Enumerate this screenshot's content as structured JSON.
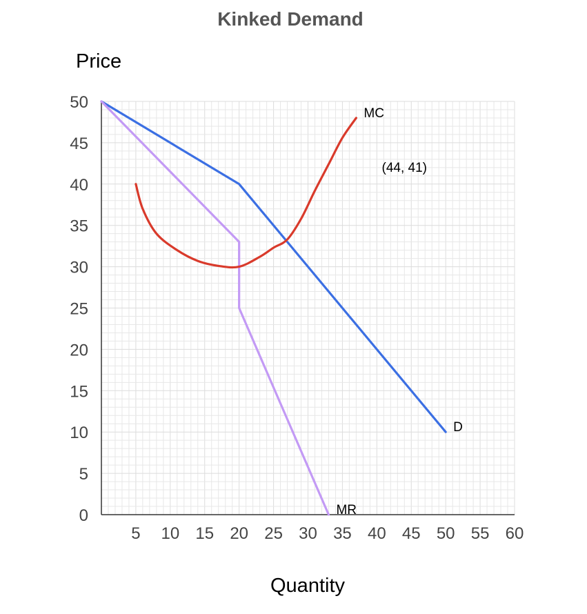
{
  "chart_data": {
    "type": "line",
    "title": "Kinked Demand",
    "xlabel": "Quantity",
    "ylabel": "Price",
    "xlim": [
      0,
      60
    ],
    "ylim": [
      0,
      50
    ],
    "x_ticks": [
      "5",
      "10",
      "15",
      "20",
      "25",
      "30",
      "35",
      "40",
      "45",
      "50",
      "55",
      "60"
    ],
    "y_ticks": [
      "0",
      "5",
      "10",
      "15",
      "20",
      "25",
      "30",
      "35",
      "40",
      "45",
      "50"
    ],
    "grid": true,
    "series": [
      {
        "name": "D",
        "color": "#3b6fe3",
        "points": [
          [
            0,
            50
          ],
          [
            20,
            40
          ],
          [
            50,
            10
          ]
        ]
      },
      {
        "name": "MR",
        "color": "#c39af5",
        "points": [
          [
            0,
            50
          ],
          [
            20,
            33
          ],
          [
            20,
            25
          ],
          [
            33,
            0
          ]
        ]
      },
      {
        "name": "MC",
        "color": "#d93a2b",
        "smooth": true,
        "points": [
          [
            5,
            40
          ],
          [
            6,
            37
          ],
          [
            8,
            34
          ],
          [
            11,
            32
          ],
          [
            14,
            30.7
          ],
          [
            17,
            30.1
          ],
          [
            20,
            30
          ],
          [
            23,
            31.2
          ],
          [
            25,
            32.3
          ],
          [
            27,
            33.3
          ],
          [
            29,
            35.8
          ],
          [
            31,
            39.2
          ],
          [
            33,
            42.4
          ],
          [
            35,
            45.6
          ],
          [
            37,
            48
          ]
        ]
      }
    ],
    "annotations": [
      {
        "text": "(44, 41)",
        "x": 44,
        "y": 41
      }
    ]
  }
}
